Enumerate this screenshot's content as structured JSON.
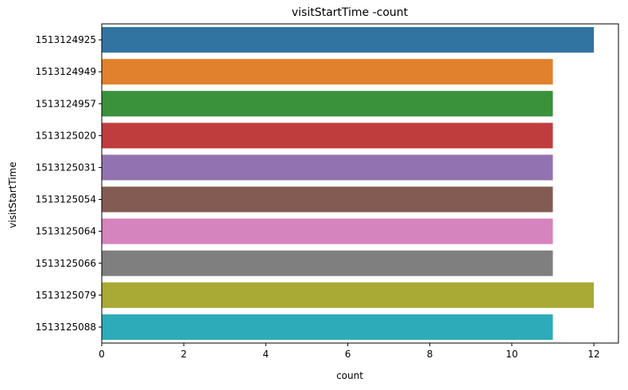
{
  "chart_data": {
    "type": "bar",
    "orientation": "horizontal",
    "title": "visitStartTime -count",
    "xlabel": "count",
    "ylabel": "visitStartTime",
    "categories": [
      "1513124925",
      "1513124949",
      "1513124957",
      "1513125020",
      "1513125031",
      "1513125054",
      "1513125064",
      "1513125066",
      "1513125079",
      "1513125088"
    ],
    "values": [
      12,
      11,
      11,
      11,
      11,
      11,
      11,
      11,
      12,
      11
    ],
    "colors": [
      "#3274a1",
      "#e1812c",
      "#3a923a",
      "#c03d3e",
      "#9372b2",
      "#845b53",
      "#d684bd",
      "#7f7f7f",
      "#a9aa35",
      "#2eabb8"
    ],
    "xlim": [
      0,
      12.6
    ],
    "xticks": [
      0,
      2,
      4,
      6,
      8,
      10,
      12
    ],
    "grid": false,
    "legend": "none"
  }
}
